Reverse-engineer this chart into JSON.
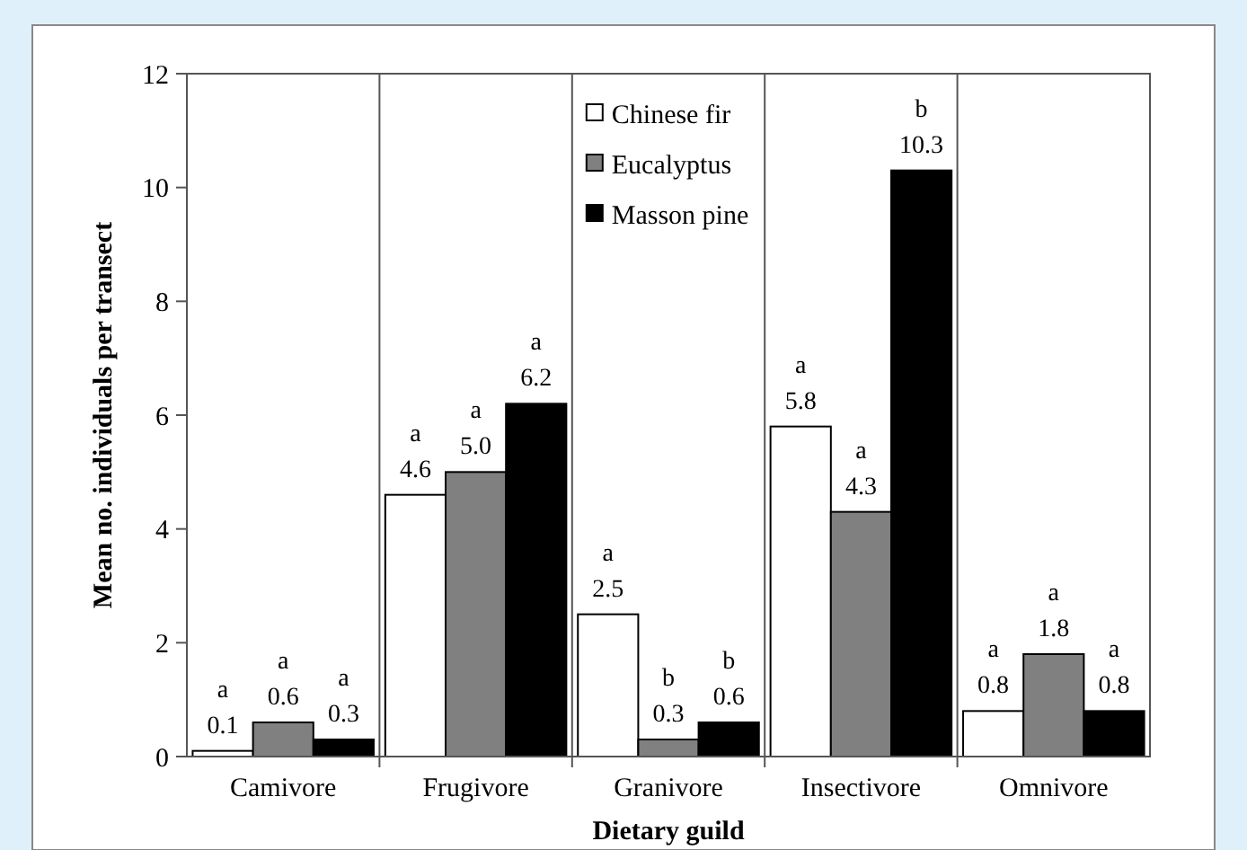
{
  "chart_data": {
    "type": "bar",
    "xlabel": "Dietary guild",
    "ylabel": "Mean no. individuals per transect",
    "categories": [
      "Camivore",
      "Frugivore",
      "Granivore",
      "Insectivore",
      "Omnivore"
    ],
    "series": [
      {
        "name": "Chinese fir",
        "color": "#ffffff",
        "values": [
          0.1,
          4.6,
          2.5,
          5.8,
          0.8
        ],
        "value_labels": [
          "a\n0.1",
          "a\n4.6",
          "a\n2.5",
          "a\n5.8",
          "a\n0.8"
        ]
      },
      {
        "name": "Eucalyptus",
        "color": "#808080",
        "values": [
          0.6,
          5.0,
          0.3,
          4.3,
          1.8
        ],
        "value_labels": [
          "a\n0.6",
          "a\n5.0",
          "b\n0.3",
          "a\n4.3",
          "a\n1.8"
        ]
      },
      {
        "name": "Masson pine",
        "color": "#000000",
        "values": [
          0.3,
          6.2,
          0.6,
          10.3,
          0.8
        ],
        "value_labels": [
          "a\n0.3",
          "a\n6.2",
          "b\n0.6",
          "b\n10.3",
          "a\n0.8"
        ]
      }
    ],
    "ylim": [
      0,
      12
    ],
    "yticks": [
      0,
      2,
      4,
      6,
      8,
      10,
      12
    ],
    "grid": false,
    "legend": "top"
  }
}
